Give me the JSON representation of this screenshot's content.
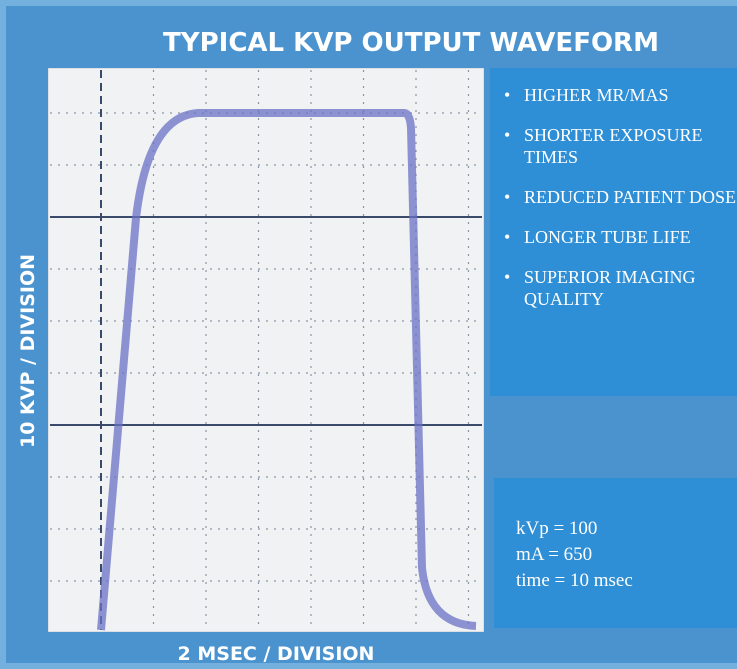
{
  "header": {
    "title": "TYPICAL KVP OUTPUT WAVEFORM"
  },
  "waveform": {
    "y_axis_label": "10 KVP / DIVISION",
    "x_axis_label": "2 MSEC / DIVISION"
  },
  "features": [
    "HIGHER MR/MAS",
    "SHORTER EXPOSURE TIMES",
    "REDUCED PATIENT DOSE",
    "LONGER TUBE LIFE",
    "SUPERIOR IMAGING QUALITY"
  ],
  "specs": [
    "kVp = 100",
    "mA = 650",
    "time = 10 msec"
  ]
}
